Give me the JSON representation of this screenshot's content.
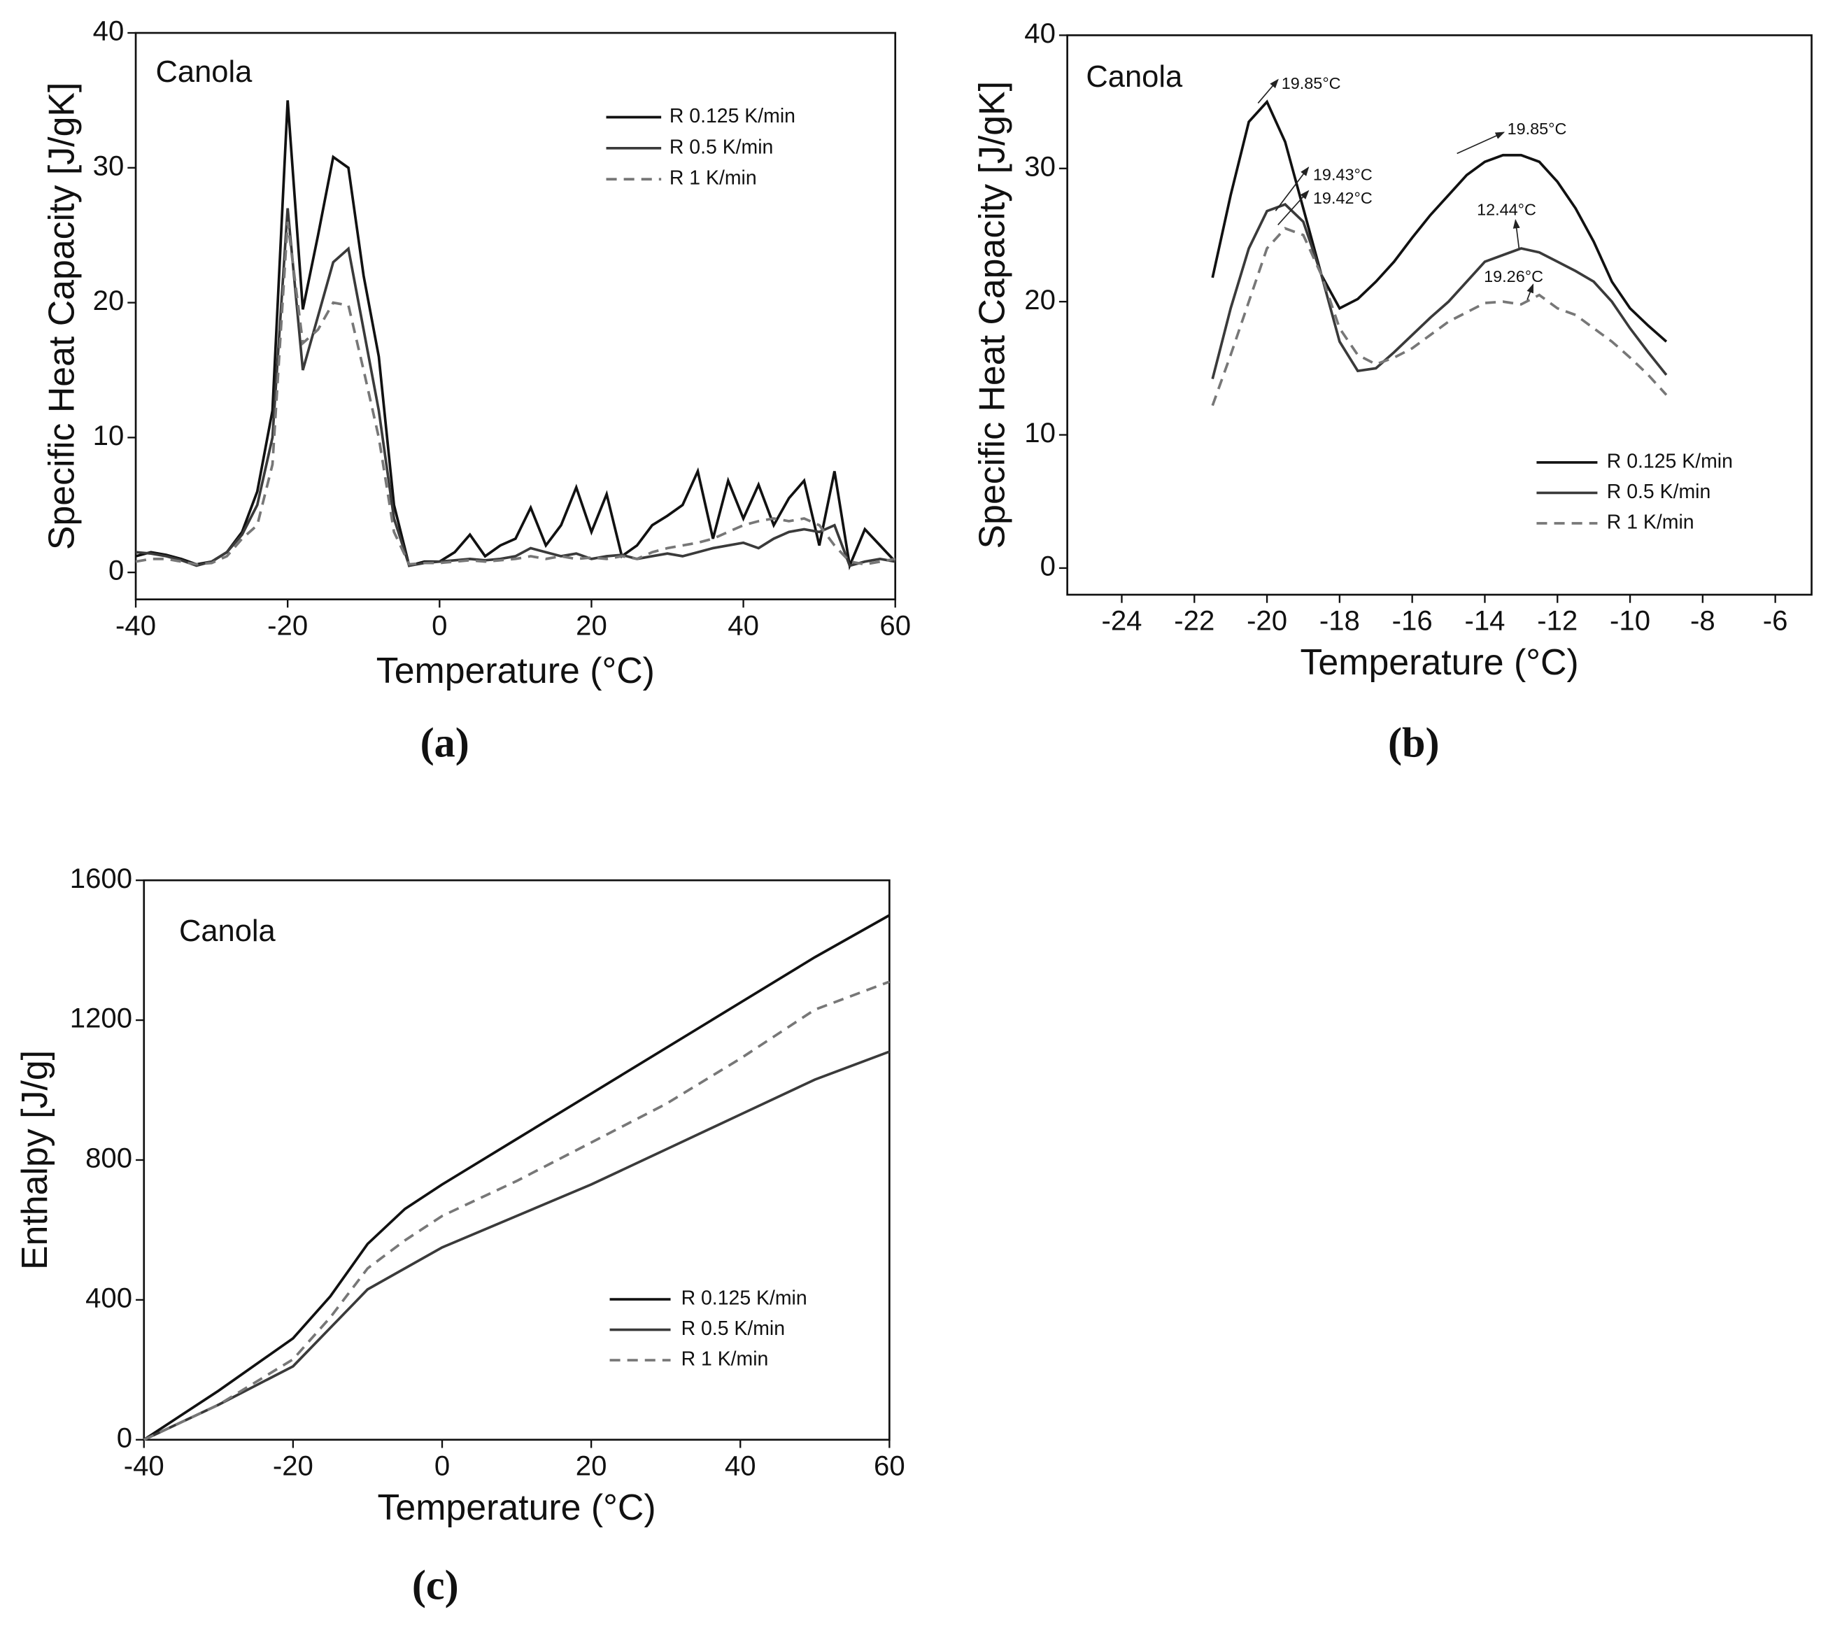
{
  "chart_data": [
    {
      "type": "line",
      "label": "Canola",
      "caption": "(a)",
      "xlabel": "Temperature (°C)",
      "ylabel": "Specific Heat Capacity [J/gK]",
      "xlim": [
        -40,
        60
      ],
      "ylim": [
        -2,
        40
      ],
      "xticks": [
        -40,
        -20,
        0,
        20,
        40,
        60
      ],
      "yticks": [
        0,
        10,
        20,
        30,
        40
      ],
      "x": [
        -40,
        -38,
        -36,
        -34,
        -32,
        -30,
        -28,
        -26,
        -24,
        -22,
        -20,
        -18,
        -16,
        -14,
        -12,
        -10,
        -8,
        -6,
        -4,
        -2,
        0,
        2,
        4,
        6,
        8,
        10,
        12,
        14,
        16,
        18,
        20,
        22,
        24,
        26,
        28,
        30,
        32,
        34,
        36,
        38,
        40,
        42,
        44,
        46,
        48,
        50,
        52,
        54,
        56,
        58,
        60
      ],
      "series": [
        {
          "name": "R 0.125 K/min",
          "color": "#111111",
          "linestyle": "solid",
          "values": [
            1.2,
            1.5,
            1.3,
            1.0,
            0.6,
            0.8,
            1.5,
            3,
            6,
            12,
            35,
            19.5,
            25,
            30.8,
            30,
            22,
            16,
            5,
            0.5,
            0.8,
            0.8,
            1.5,
            2.8,
            1.2,
            2.0,
            2.5,
            4.8,
            2.0,
            3.5,
            6.3,
            3.0,
            5.8,
            1.2,
            2.0,
            3.5,
            4.2,
            5.0,
            7.5,
            2.5,
            6.8,
            4.0,
            6.5,
            3.5,
            5.5,
            6.8,
            2.0,
            7.5,
            0.5,
            3.2,
            2.0,
            0.8
          ]
        },
        {
          "name": "R 0.5 K/min",
          "color": "#3a3a3a",
          "linestyle": "solid",
          "values": [
            1.5,
            1.4,
            1.2,
            0.9,
            0.5,
            0.8,
            1.5,
            2.8,
            5,
            10,
            27,
            15,
            19,
            23,
            24,
            18,
            12,
            4,
            0.5,
            0.7,
            0.8,
            0.9,
            1.0,
            0.9,
            1.0,
            1.2,
            1.8,
            1.5,
            1.2,
            1.4,
            1.0,
            1.2,
            1.3,
            1.0,
            1.2,
            1.4,
            1.2,
            1.5,
            1.8,
            2.0,
            2.2,
            1.8,
            2.5,
            3.0,
            3.2,
            3.0,
            3.5,
            0.5,
            0.8,
            1.0,
            0.8
          ]
        },
        {
          "name": "R 1 K/min",
          "color": "#777777",
          "linestyle": "dashed",
          "values": [
            0.8,
            1.0,
            1.0,
            0.8,
            0.6,
            0.7,
            1.2,
            2.5,
            3.5,
            8,
            26,
            17,
            18,
            20,
            19.8,
            15,
            10,
            3,
            0.6,
            0.7,
            0.7,
            0.8,
            0.9,
            0.8,
            0.9,
            1.0,
            1.2,
            1.0,
            1.2,
            1.0,
            1.1,
            1.0,
            1.2,
            1.0,
            1.5,
            1.8,
            2.0,
            2.2,
            2.5,
            3.0,
            3.5,
            3.8,
            4.0,
            3.8,
            4.0,
            3.5,
            2.0,
            0.8,
            0.6,
            0.8,
            1.0
          ]
        }
      ]
    },
    {
      "type": "line",
      "label": "Canola",
      "caption": "(b)",
      "xlabel": "Temperature (°C)",
      "ylabel": "Specific Heat Capacity [J/gK]",
      "xlim": [
        -25.5,
        -5
      ],
      "ylim": [
        -2,
        40
      ],
      "xticks": [
        -24,
        -22,
        -20,
        -18,
        -16,
        -14,
        -12,
        -10,
        -8,
        -6
      ],
      "yticks": [
        0,
        10,
        20,
        30,
        40
      ],
      "x": [
        -21.5,
        -21,
        -20.5,
        -20,
        -19.5,
        -19,
        -18.5,
        -18,
        -17.5,
        -17,
        -16.5,
        -16,
        -15.5,
        -15,
        -14.5,
        -14,
        -13.5,
        -13,
        -12.5,
        -12,
        -11.5,
        -11,
        -10.5,
        -10,
        -9.5,
        -9
      ],
      "series": [
        {
          "name": "R 0.125 K/min",
          "color": "#111111",
          "linestyle": "solid",
          "values": [
            21.8,
            28,
            33.5,
            35,
            32,
            27,
            22,
            19.5,
            20.2,
            21.5,
            23,
            24.8,
            26.5,
            28,
            29.5,
            30.5,
            31,
            31,
            30.5,
            29,
            27,
            24.5,
            21.5,
            19.5,
            18.2,
            17
          ]
        },
        {
          "name": "R 0.5 K/min",
          "color": "#3a3a3a",
          "linestyle": "solid",
          "values": [
            14.2,
            19.5,
            24,
            26.8,
            27.3,
            26,
            22,
            17,
            14.8,
            15,
            16.2,
            17.5,
            18.8,
            20,
            21.5,
            23,
            23.5,
            24,
            23.7,
            23,
            22.3,
            21.5,
            20,
            18,
            16.2,
            14.5
          ]
        },
        {
          "name": "R 1 K/min",
          "color": "#777777",
          "linestyle": "dashed",
          "values": [
            12.2,
            16,
            20,
            24,
            25.5,
            25,
            22,
            18,
            16,
            15.3,
            15.8,
            16.5,
            17.5,
            18.5,
            19.2,
            19.9,
            20,
            19.8,
            20.5,
            19.5,
            19,
            18,
            17,
            15.8,
            14.5,
            13
          ]
        }
      ],
      "annotations": [
        "19.85°C",
        "19.85°C",
        "19.43°C",
        "19.42°C",
        "12.44°C",
        "19.26°C"
      ]
    },
    {
      "type": "line",
      "label": "Canola",
      "caption": "(c)",
      "xlabel": "Temperature (°C)",
      "ylabel": "Enthalpy [J/g]",
      "xlim": [
        -40,
        60
      ],
      "ylim": [
        0,
        1600
      ],
      "xticks": [
        -40,
        -20,
        0,
        20,
        40,
        60
      ],
      "yticks": [
        0,
        400,
        800,
        1200,
        1600
      ],
      "x": [
        -40,
        -30,
        -20,
        -15,
        -10,
        -5,
        0,
        10,
        20,
        30,
        40,
        50,
        60
      ],
      "series": [
        {
          "name": "R 0.125 K/min",
          "color": "#111111",
          "linestyle": "solid",
          "values": [
            0,
            140,
            290,
            410,
            560,
            660,
            730,
            860,
            990,
            1120,
            1250,
            1380,
            1500
          ]
        },
        {
          "name": "R 0.5 K/min",
          "color": "#3a3a3a",
          "linestyle": "solid",
          "values": [
            0,
            100,
            210,
            320,
            430,
            490,
            550,
            640,
            730,
            830,
            930,
            1030,
            1110
          ]
        },
        {
          "name": "R 1 K/min",
          "color": "#777777",
          "linestyle": "dashed",
          "values": [
            0,
            100,
            230,
            350,
            490,
            570,
            640,
            740,
            850,
            960,
            1090,
            1230,
            1310
          ]
        }
      ]
    }
  ]
}
